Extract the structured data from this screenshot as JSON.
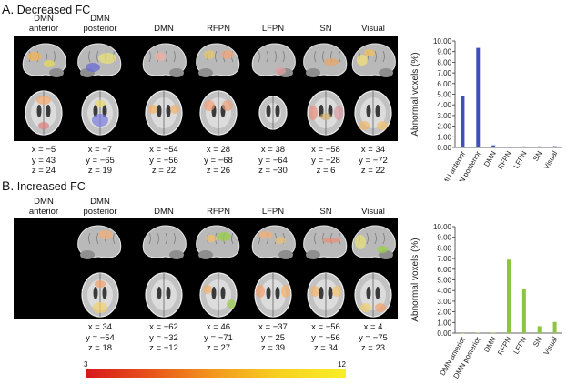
{
  "panels": [
    {
      "title_letter": "A.",
      "title_text": "Decreased FC",
      "networks": [
        "DMN\nanterior",
        "DMN\nposterior",
        "DMN",
        "RFPN",
        "LFPN",
        "SN",
        "Visual"
      ],
      "coords": [
        {
          "x": "x = −5",
          "y": "y = 43",
          "z": "z = 24"
        },
        {
          "x": "x = −7",
          "y": "y = −65",
          "z": "z = 19"
        },
        {
          "x": "x = −54",
          "y": "y = −56",
          "z": "z = 22"
        },
        {
          "x": "x = 28",
          "y": "y = −68",
          "z": "z = 26"
        },
        {
          "x": "x = 38",
          "y": "y = −64",
          "z": "z = −30"
        },
        {
          "x": "x = −58",
          "y": "y = −28",
          "z": "z = 6"
        },
        {
          "x": "x = 34",
          "y": "y = −72",
          "z": "z = 22"
        }
      ]
    },
    {
      "title_letter": "B.",
      "title_text": "Increased FC",
      "networks": [
        "DMN\nanterior",
        "DMN\nposterior",
        "DMN",
        "RFPN",
        "LFPN",
        "SN",
        "Visual"
      ],
      "coords": [
        null,
        {
          "x": "x = 34",
          "y": "y = −54",
          "z": "z = 18"
        },
        {
          "x": "x = −62",
          "y": "y = −32",
          "z": "z = −12"
        },
        {
          "x": "x = 46",
          "y": "y = −71",
          "z": "z = 27"
        },
        {
          "x": "x = −37",
          "y": "y = 25",
          "z": "z = 39"
        },
        {
          "x": "x = −56",
          "y": "y = −56",
          "z": "z = 34"
        },
        {
          "x": "x = 4",
          "y": "y = −75",
          "z": "z = 23"
        }
      ]
    }
  ],
  "colorbar": {
    "min_label": "3",
    "max_label": "12"
  },
  "chart_data": [
    {
      "type": "bar",
      "categories": [
        "DMN anterior",
        "DMN posterior",
        "DMN",
        "RFPN",
        "LFPN",
        "SN",
        "Visual"
      ],
      "values": [
        4.8,
        9.35,
        0.2,
        0.02,
        0.1,
        0.1,
        0.12
      ],
      "ylabel": "Abnormal voxels (%)",
      "ylim": [
        0,
        10
      ],
      "yticks": [
        "0.00",
        "1.00",
        "2.00",
        "3.00",
        "4.00",
        "5.00",
        "6.00",
        "7.00",
        "8.00",
        "9.00",
        "10.00"
      ],
      "color": "#3f51b5",
      "grid": false
    },
    {
      "type": "bar",
      "categories": [
        "DMN anterior",
        "DMN posterior",
        "DMN",
        "RFPN",
        "LFPN",
        "SN",
        "Visual"
      ],
      "values": [
        0.0,
        0.05,
        0.05,
        6.9,
        4.15,
        0.65,
        1.05
      ],
      "ylabel": "Abnormal voxels (%)",
      "ylim": [
        0,
        10
      ],
      "yticks": [
        "0.00",
        "1.00",
        "2.00",
        "3.00",
        "4.00",
        "5.00",
        "6.00",
        "7.00",
        "8.00",
        "9.00",
        "10.00"
      ],
      "color": "#8cc63f",
      "grid": false
    }
  ]
}
